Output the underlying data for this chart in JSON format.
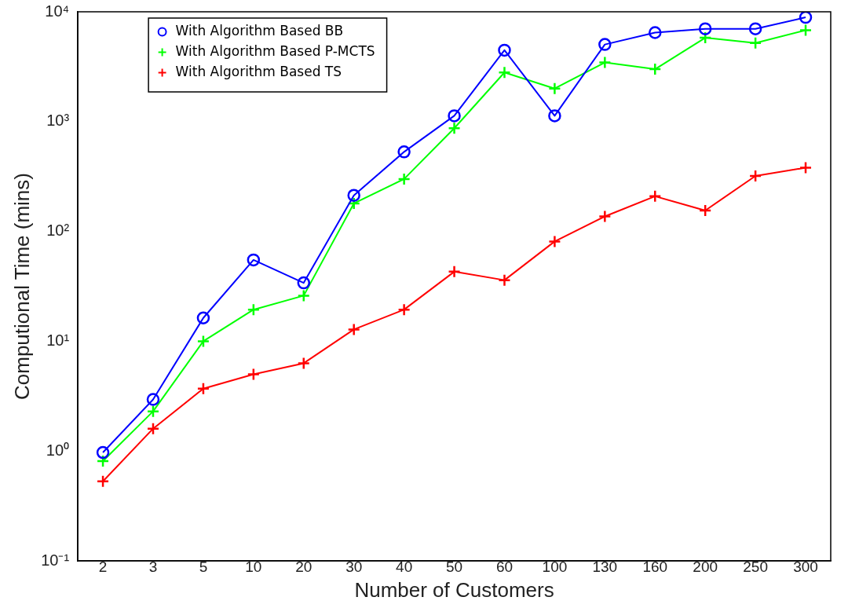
{
  "chart_data": {
    "type": "line",
    "xlabel": "Number of Customers",
    "ylabel": "Computional Time (mins)",
    "categories": [
      "2",
      "3",
      "5",
      "10",
      "20",
      "30",
      "40",
      "50",
      "60",
      "100",
      "130",
      "160",
      "200",
      "250",
      "300"
    ],
    "series": [
      {
        "name": "With Algorithm Based BB",
        "color": "#0000ff",
        "marker": "circle",
        "values": [
          0.97,
          2.95,
          16.3,
          55,
          34,
          213,
          530,
          1130,
          4470,
          1130,
          5040,
          6460,
          7000,
          7000,
          8900
        ]
      },
      {
        "name": "With Algorithm Based P-MCTS",
        "color": "#00ff00",
        "marker": "cross",
        "values": [
          0.81,
          2.3,
          10,
          19.4,
          26,
          180,
          300,
          870,
          2800,
          2000,
          3450,
          3000,
          5800,
          5200,
          6800
        ]
      },
      {
        "name": "With Algorithm Based TS",
        "color": "#ff0000",
        "marker": "cross",
        "values": [
          0.53,
          1.6,
          3.7,
          5.0,
          6.3,
          12.8,
          19.4,
          43,
          36,
          81,
          137,
          209,
          155,
          320,
          380
        ]
      }
    ],
    "log": "y",
    "ylim": [
      0.1,
      10000
    ],
    "yticks": [
      {
        "value": 0.1,
        "label": "10⁻¹"
      },
      {
        "value": 1,
        "label": "10⁰"
      },
      {
        "value": 10,
        "label": "10¹"
      },
      {
        "value": 100,
        "label": "10²"
      },
      {
        "value": 1000,
        "label": "10³"
      },
      {
        "value": 10000,
        "label": "10⁴"
      }
    ],
    "grid": false,
    "legend": "top left",
    "line_style": "solid"
  }
}
